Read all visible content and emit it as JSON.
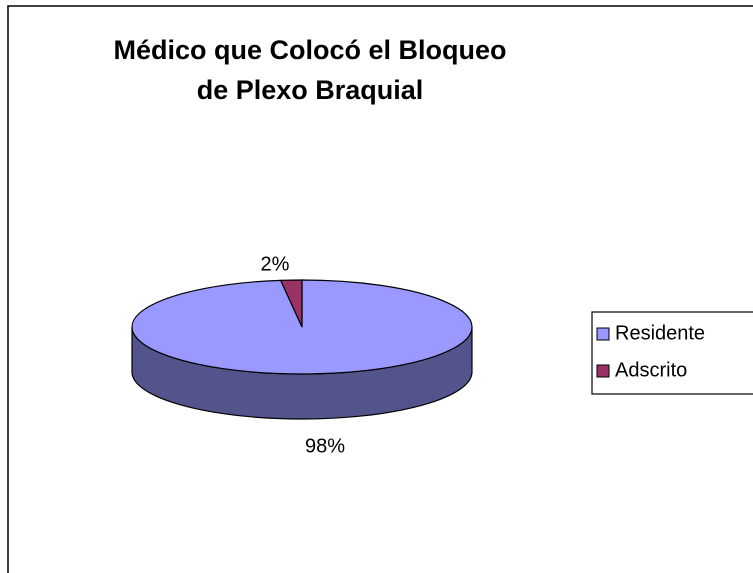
{
  "chart_data": {
    "type": "pie",
    "title": "Médico que Colocó el Bloqueo de Plexo Braquial",
    "categories": [
      "Residente",
      "Adscrito"
    ],
    "values": [
      98,
      2
    ],
    "value_labels": [
      "98%",
      "2%"
    ],
    "colors": [
      "#9999ff",
      "#993366"
    ],
    "legend": "right"
  }
}
